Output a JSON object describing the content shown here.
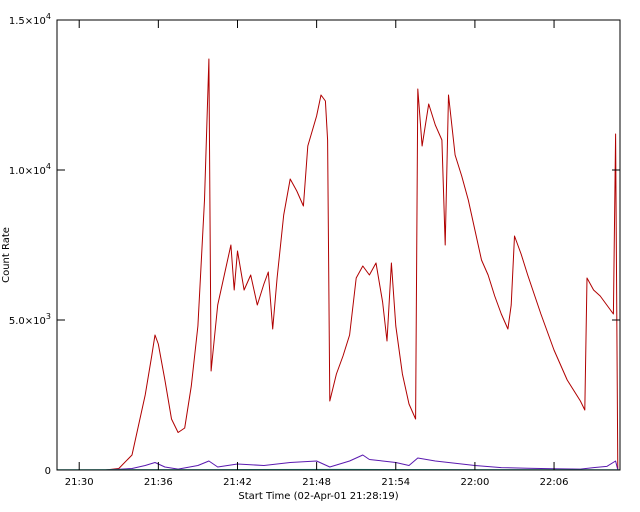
{
  "chart_data": {
    "type": "line",
    "xlabel": "Start Time (02-Apr-01 21:28:19)",
    "ylabel": "Count Rate",
    "xlim": [
      "21:28:19",
      "22:11:00"
    ],
    "ylim": [
      0,
      15000
    ],
    "x_ticks": [
      {
        "t": "21:30",
        "label": "21:30"
      },
      {
        "t": "21:36",
        "label": "21:36"
      },
      {
        "t": "21:42",
        "label": "21:42"
      },
      {
        "t": "21:48",
        "label": "21:48"
      },
      {
        "t": "21:54",
        "label": "21:54"
      },
      {
        "t": "22:00",
        "label": "22:00"
      },
      {
        "t": "22:06",
        "label": "22:06"
      }
    ],
    "y_ticks": [
      {
        "value": 0,
        "mantissa": "0",
        "exponent": ""
      },
      {
        "value": 5000,
        "mantissa": "5.0×10",
        "exponent": "3"
      },
      {
        "value": 10000,
        "mantissa": "1.0×10",
        "exponent": "4"
      },
      {
        "value": 15000,
        "mantissa": "1.5×10",
        "exponent": "4"
      }
    ],
    "grid": false,
    "series": [
      {
        "color": "#b00000",
        "points": [
          [
            "21:32:00",
            0
          ],
          [
            "21:33:00",
            50
          ],
          [
            "21:34:00",
            500
          ],
          [
            "21:34:30",
            1500
          ],
          [
            "21:35:00",
            2500
          ],
          [
            "21:35:30",
            3800
          ],
          [
            "21:35:45",
            4500
          ],
          [
            "21:36:00",
            4200
          ],
          [
            "21:36:30",
            3000
          ],
          [
            "21:37:00",
            1700
          ],
          [
            "21:37:30",
            1250
          ],
          [
            "21:38:00",
            1400
          ],
          [
            "21:38:30",
            2800
          ],
          [
            "21:39:00",
            4800
          ],
          [
            "21:39:30",
            9000
          ],
          [
            "21:39:50",
            13700
          ],
          [
            "21:40:00",
            3300
          ],
          [
            "21:40:30",
            5500
          ],
          [
            "21:41:00",
            6500
          ],
          [
            "21:41:30",
            7500
          ],
          [
            "21:41:45",
            6000
          ],
          [
            "21:42:00",
            7300
          ],
          [
            "21:42:30",
            6000
          ],
          [
            "21:43:00",
            6500
          ],
          [
            "21:43:30",
            5500
          ],
          [
            "21:44:00",
            6200
          ],
          [
            "21:44:20",
            6600
          ],
          [
            "21:44:40",
            4700
          ],
          [
            "21:45:00",
            6400
          ],
          [
            "21:45:30",
            8500
          ],
          [
            "21:46:00",
            9700
          ],
          [
            "21:46:30",
            9300
          ],
          [
            "21:47:00",
            8800
          ],
          [
            "21:47:20",
            10800
          ],
          [
            "21:47:40",
            11300
          ],
          [
            "21:48:00",
            11800
          ],
          [
            "21:48:20",
            12500
          ],
          [
            "21:48:40",
            12300
          ],
          [
            "21:48:50",
            11000
          ],
          [
            "21:49:00",
            2300
          ],
          [
            "21:49:30",
            3200
          ],
          [
            "21:50:00",
            3800
          ],
          [
            "21:50:30",
            4500
          ],
          [
            "21:51:00",
            6400
          ],
          [
            "21:51:30",
            6800
          ],
          [
            "21:52:00",
            6500
          ],
          [
            "21:52:30",
            6900
          ],
          [
            "21:53:00",
            5600
          ],
          [
            "21:53:20",
            4300
          ],
          [
            "21:53:40",
            6900
          ],
          [
            "21:54:00",
            4800
          ],
          [
            "21:54:30",
            3200
          ],
          [
            "21:55:00",
            2200
          ],
          [
            "21:55:30",
            1700
          ],
          [
            "21:55:40",
            12700
          ],
          [
            "21:56:00",
            10800
          ],
          [
            "21:56:30",
            12200
          ],
          [
            "21:57:00",
            11500
          ],
          [
            "21:57:30",
            11000
          ],
          [
            "21:57:45",
            7500
          ],
          [
            "21:58:00",
            12500
          ],
          [
            "21:58:30",
            10500
          ],
          [
            "21:59:00",
            9800
          ],
          [
            "21:59:30",
            9000
          ],
          [
            "22:00:00",
            8000
          ],
          [
            "22:00:30",
            7000
          ],
          [
            "22:01:00",
            6500
          ],
          [
            "22:01:30",
            5800
          ],
          [
            "22:02:00",
            5200
          ],
          [
            "22:02:30",
            4700
          ],
          [
            "22:02:45",
            5500
          ],
          [
            "22:03:00",
            7800
          ],
          [
            "22:03:30",
            7200
          ],
          [
            "22:04:00",
            6500
          ],
          [
            "22:05:00",
            5200
          ],
          [
            "22:06:00",
            4000
          ],
          [
            "22:07:00",
            3000
          ],
          [
            "22:08:00",
            2300
          ],
          [
            "22:08:20",
            2000
          ],
          [
            "22:08:30",
            6400
          ],
          [
            "22:09:00",
            6000
          ],
          [
            "22:09:30",
            5800
          ],
          [
            "22:10:00",
            5500
          ],
          [
            "22:10:30",
            5200
          ],
          [
            "22:10:40",
            11200
          ],
          [
            "22:10:50",
            0
          ]
        ]
      },
      {
        "color": "#5a1ab0",
        "points": [
          [
            "21:32:00",
            0
          ],
          [
            "21:34:00",
            50
          ],
          [
            "21:35:00",
            150
          ],
          [
            "21:35:45",
            250
          ],
          [
            "21:36:30",
            100
          ],
          [
            "21:37:30",
            30
          ],
          [
            "21:39:00",
            150
          ],
          [
            "21:39:50",
            300
          ],
          [
            "21:40:30",
            100
          ],
          [
            "21:42:00",
            200
          ],
          [
            "21:44:00",
            150
          ],
          [
            "21:46:00",
            250
          ],
          [
            "21:48:00",
            300
          ],
          [
            "21:49:00",
            100
          ],
          [
            "21:50:30",
            300
          ],
          [
            "21:51:30",
            500
          ],
          [
            "21:52:00",
            350
          ],
          [
            "21:53:00",
            300
          ],
          [
            "21:54:00",
            250
          ],
          [
            "21:55:00",
            150
          ],
          [
            "21:55:40",
            400
          ],
          [
            "21:57:00",
            300
          ],
          [
            "21:58:00",
            250
          ],
          [
            "22:00:00",
            150
          ],
          [
            "22:02:00",
            80
          ],
          [
            "22:04:00",
            60
          ],
          [
            "22:06:00",
            40
          ],
          [
            "22:08:00",
            30
          ],
          [
            "22:09:00",
            80
          ],
          [
            "22:10:00",
            120
          ],
          [
            "22:10:40",
            300
          ],
          [
            "22:10:50",
            0
          ]
        ]
      },
      {
        "color": "#2aa090",
        "points": [
          [
            "21:28:19",
            10
          ],
          [
            "21:40:00",
            15
          ],
          [
            "21:50:00",
            20
          ],
          [
            "22:00:00",
            15
          ],
          [
            "22:11:00",
            10
          ]
        ]
      }
    ]
  }
}
